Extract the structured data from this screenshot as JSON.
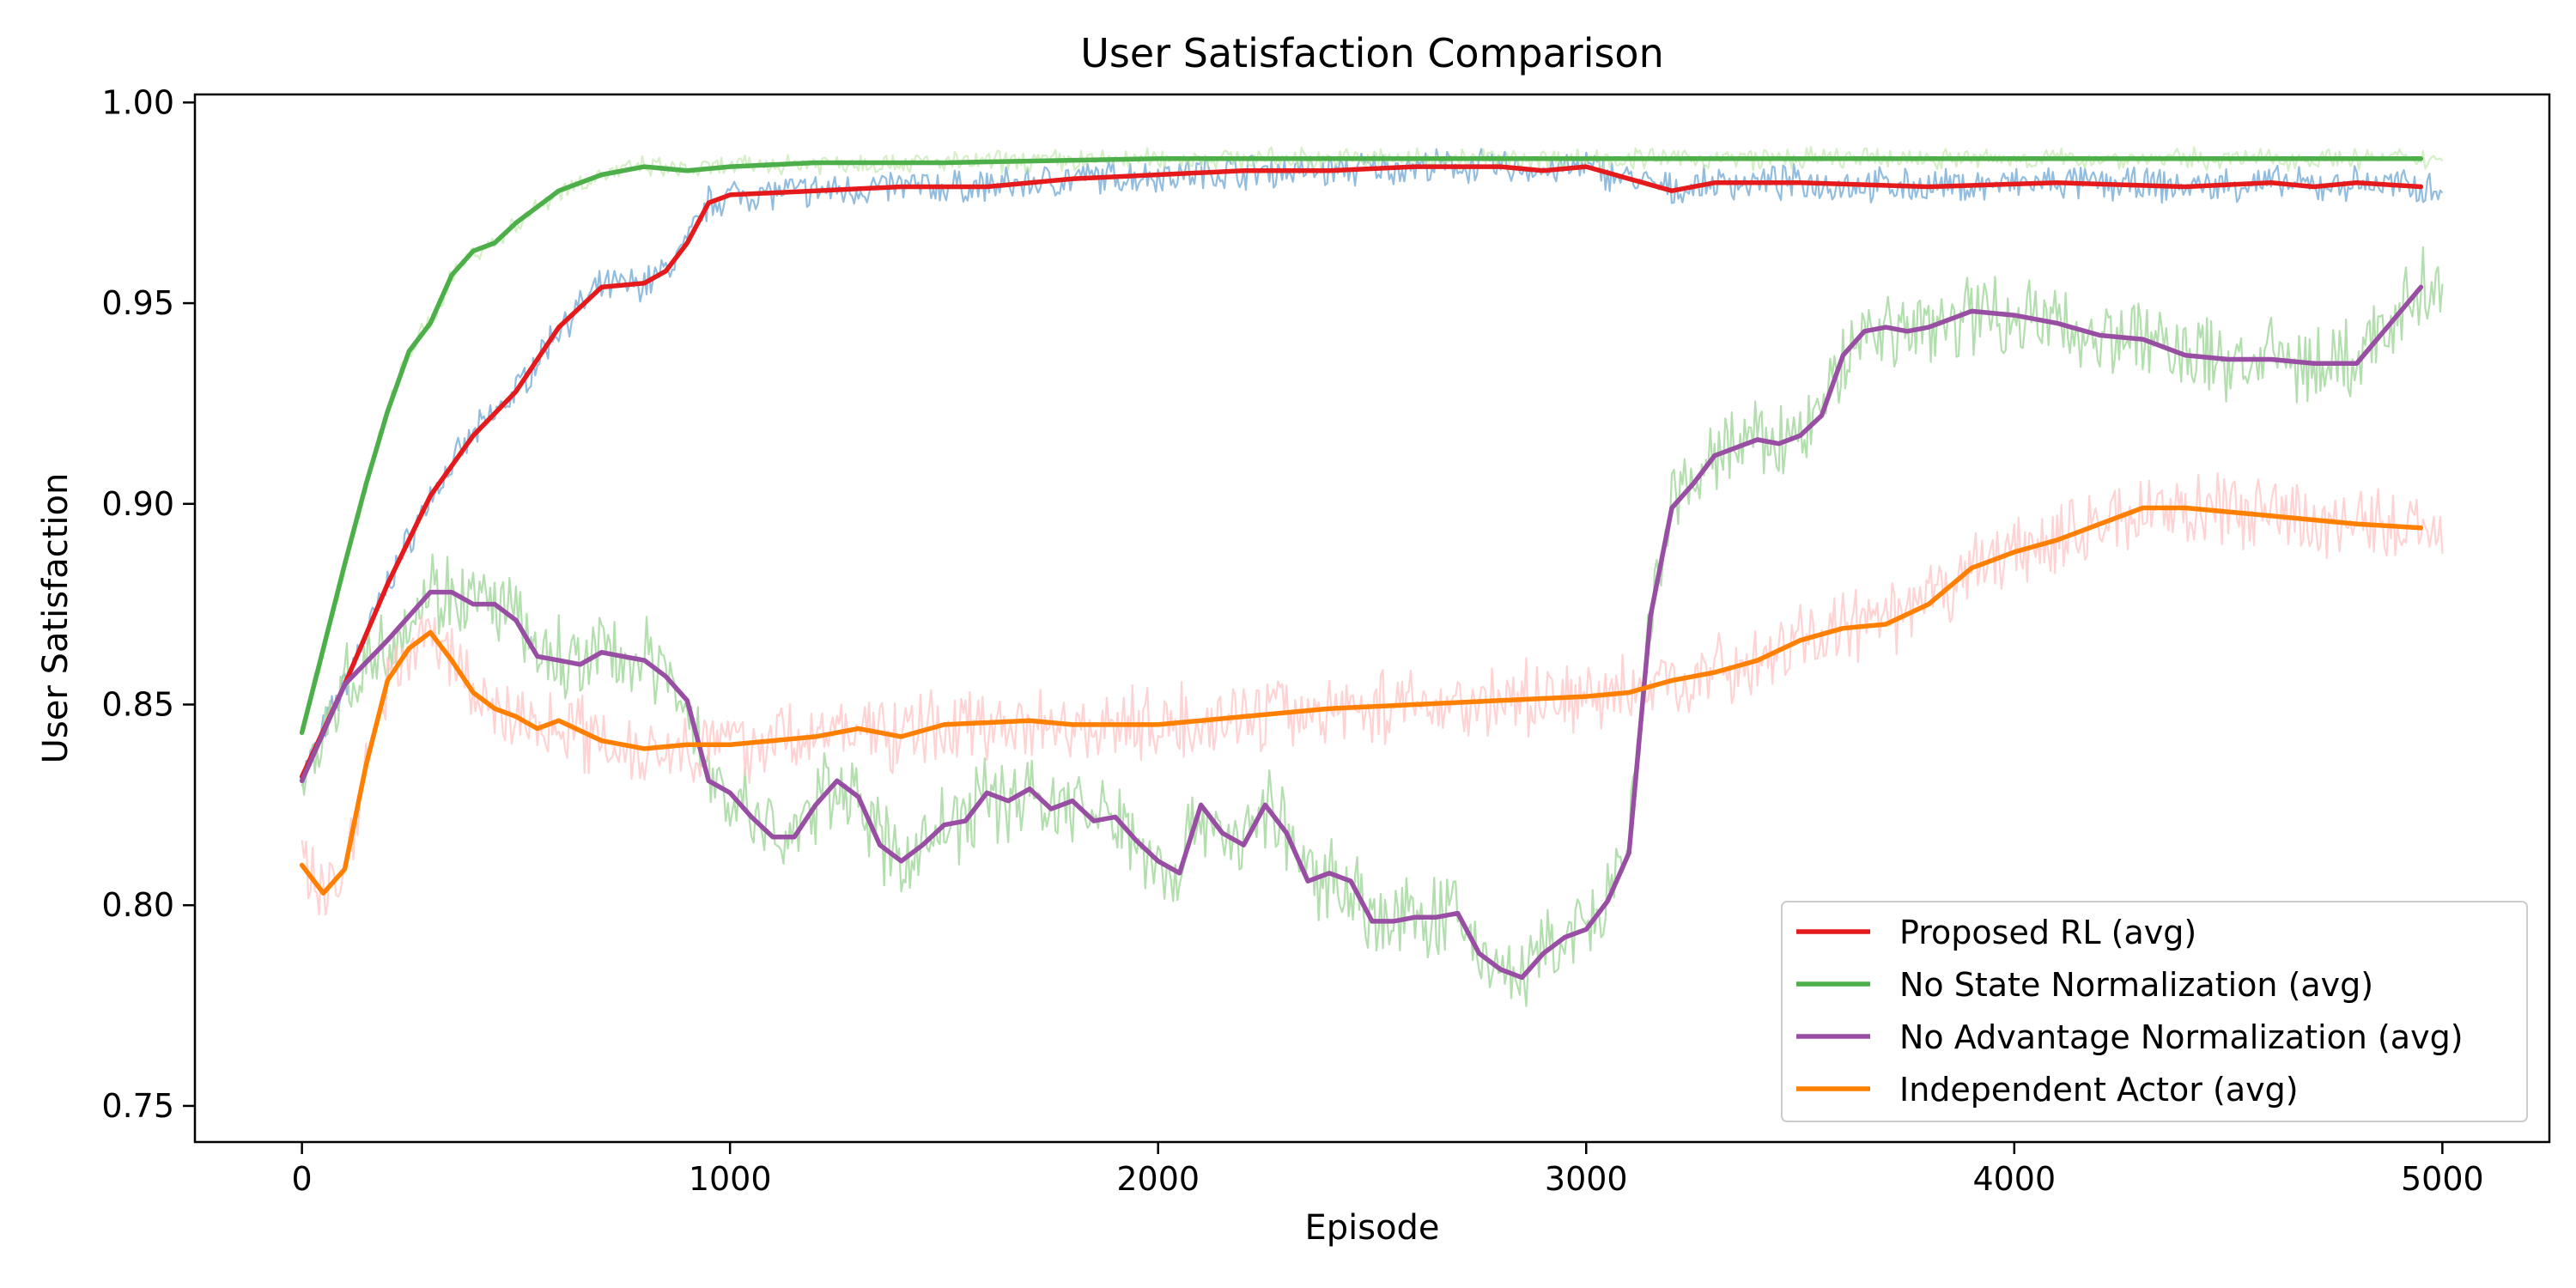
{
  "chart_data": {
    "type": "line",
    "title": "User Satisfaction Comparison",
    "xlabel": "Episode",
    "ylabel": "User Satisfaction",
    "xlim": [
      -250,
      5250
    ],
    "ylim": [
      0.741,
      1.002
    ],
    "xticks": [
      0,
      1000,
      2000,
      3000,
      4000,
      5000
    ],
    "xtick_labels": [
      "0",
      "1000",
      "2000",
      "3000",
      "4000",
      "5000"
    ],
    "yticks": [
      0.75,
      0.8,
      0.85,
      0.9,
      0.95,
      1.0
    ],
    "ytick_labels": [
      "0.75",
      "0.80",
      "0.85",
      "0.90",
      "0.95",
      "1.00"
    ],
    "grid": false,
    "legend_position": "lower-right",
    "series": [
      {
        "name": "Proposed RL (avg)",
        "color": "#e41a1c",
        "raw_color": "#7fb1d8",
        "x": [
          0,
          100,
          200,
          300,
          400,
          500,
          600,
          700,
          800,
          850,
          900,
          950,
          1000,
          1200,
          1400,
          1600,
          1800,
          2000,
          2200,
          2400,
          2600,
          2800,
          2900,
          3000,
          3100,
          3200,
          3300,
          3500,
          3800,
          4100,
          4400,
          4600,
          4700,
          4800,
          4950
        ],
        "values": [
          0.832,
          0.855,
          0.88,
          0.902,
          0.917,
          0.928,
          0.944,
          0.954,
          0.955,
          0.958,
          0.965,
          0.975,
          0.977,
          0.978,
          0.979,
          0.979,
          0.981,
          0.982,
          0.983,
          0.983,
          0.984,
          0.984,
          0.983,
          0.984,
          0.981,
          0.978,
          0.98,
          0.98,
          0.979,
          0.98,
          0.979,
          0.98,
          0.979,
          0.98,
          0.979
        ]
      },
      {
        "name": "No State Normalization (avg)",
        "color": "#4daf4a",
        "raw_color": "#c7e9b4",
        "x": [
          0,
          50,
          100,
          150,
          200,
          250,
          300,
          350,
          400,
          450,
          500,
          600,
          700,
          800,
          900,
          1000,
          1200,
          1500,
          2000,
          2500,
          3000,
          3500,
          4000,
          4500,
          4950
        ],
        "values": [
          0.843,
          0.864,
          0.885,
          0.905,
          0.923,
          0.938,
          0.945,
          0.957,
          0.963,
          0.965,
          0.97,
          0.978,
          0.982,
          0.984,
          0.983,
          0.984,
          0.985,
          0.985,
          0.986,
          0.986,
          0.986,
          0.986,
          0.986,
          0.986,
          0.986
        ]
      },
      {
        "name": "No Advantage Normalization (avg)",
        "color": "#984ea3",
        "raw_color": "#a6d9a0",
        "x": [
          0,
          100,
          200,
          300,
          350,
          400,
          450,
          500,
          550,
          600,
          650,
          700,
          750,
          800,
          850,
          900,
          950,
          1000,
          1050,
          1100,
          1150,
          1200,
          1250,
          1300,
          1350,
          1400,
          1450,
          1500,
          1550,
          1600,
          1650,
          1700,
          1750,
          1800,
          1850,
          1900,
          1950,
          2000,
          2050,
          2100,
          2150,
          2200,
          2250,
          2300,
          2350,
          2400,
          2450,
          2500,
          2550,
          2600,
          2650,
          2700,
          2750,
          2800,
          2850,
          2900,
          2950,
          3000,
          3050,
          3100,
          3150,
          3200,
          3250,
          3300,
          3350,
          3400,
          3450,
          3500,
          3550,
          3600,
          3650,
          3700,
          3750,
          3800,
          3850,
          3900,
          4000,
          4100,
          4200,
          4300,
          4400,
          4500,
          4600,
          4700,
          4800,
          4950
        ],
        "values": [
          0.831,
          0.855,
          0.866,
          0.878,
          0.878,
          0.875,
          0.875,
          0.871,
          0.862,
          0.861,
          0.86,
          0.863,
          0.862,
          0.861,
          0.857,
          0.851,
          0.831,
          0.828,
          0.822,
          0.817,
          0.817,
          0.825,
          0.831,
          0.827,
          0.815,
          0.811,
          0.815,
          0.82,
          0.821,
          0.828,
          0.826,
          0.829,
          0.824,
          0.826,
          0.821,
          0.822,
          0.816,
          0.811,
          0.808,
          0.825,
          0.818,
          0.815,
          0.825,
          0.818,
          0.806,
          0.808,
          0.806,
          0.796,
          0.796,
          0.797,
          0.797,
          0.798,
          0.788,
          0.784,
          0.782,
          0.788,
          0.792,
          0.794,
          0.801,
          0.813,
          0.872,
          0.899,
          0.905,
          0.912,
          0.914,
          0.916,
          0.915,
          0.917,
          0.922,
          0.937,
          0.943,
          0.944,
          0.943,
          0.944,
          0.946,
          0.948,
          0.947,
          0.945,
          0.942,
          0.941,
          0.937,
          0.936,
          0.936,
          0.935,
          0.935,
          0.954
        ]
      },
      {
        "name": "Independent Actor (avg)",
        "color": "#ff7f00",
        "raw_color": "#ffc8c8",
        "x": [
          0,
          50,
          100,
          150,
          200,
          250,
          300,
          350,
          400,
          450,
          500,
          550,
          600,
          700,
          800,
          900,
          1000,
          1200,
          1300,
          1400,
          1500,
          1700,
          1800,
          2000,
          2200,
          2400,
          2600,
          2800,
          3000,
          3100,
          3200,
          3300,
          3400,
          3500,
          3600,
          3700,
          3800,
          3900,
          4000,
          4100,
          4200,
          4300,
          4400,
          4500,
          4600,
          4700,
          4800,
          4950
        ],
        "values": [
          0.81,
          0.803,
          0.809,
          0.835,
          0.856,
          0.864,
          0.868,
          0.861,
          0.853,
          0.849,
          0.847,
          0.844,
          0.846,
          0.841,
          0.839,
          0.84,
          0.84,
          0.842,
          0.844,
          0.842,
          0.845,
          0.846,
          0.845,
          0.845,
          0.847,
          0.849,
          0.85,
          0.851,
          0.852,
          0.853,
          0.856,
          0.858,
          0.861,
          0.866,
          0.869,
          0.87,
          0.875,
          0.884,
          0.888,
          0.891,
          0.895,
          0.899,
          0.899,
          0.898,
          0.897,
          0.896,
          0.895,
          0.894
        ]
      }
    ]
  }
}
